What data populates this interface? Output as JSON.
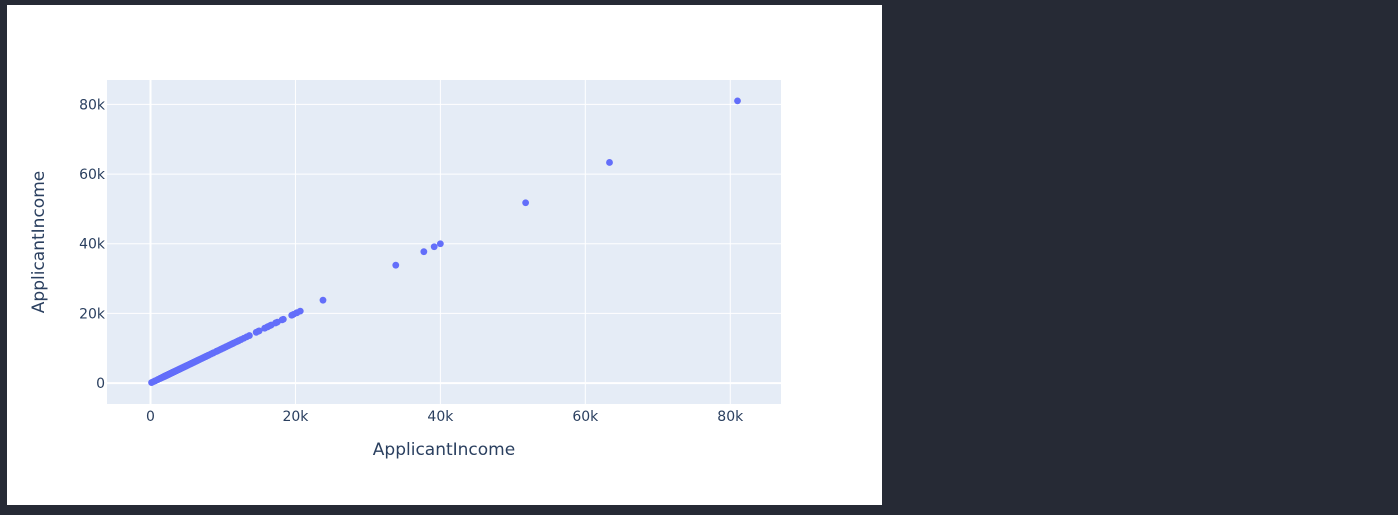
{
  "colors": {
    "page_background": "#262a35",
    "paper": "#ffffff",
    "plot_background": "#e5ecf6",
    "grid": "#ffffff",
    "marker": "#636efa",
    "text": "#2a3f5f"
  },
  "chart_data": {
    "type": "scatter",
    "title": "",
    "xlabel": "ApplicantIncome",
    "ylabel": "ApplicantIncome",
    "xlim": [
      -6000,
      87000
    ],
    "ylim": [
      -6000,
      87000
    ],
    "grid": true,
    "x_ticks": [
      0,
      20000,
      40000,
      60000,
      80000
    ],
    "x_tick_labels": [
      "0",
      "20k",
      "40k",
      "60k",
      "80k"
    ],
    "y_ticks": [
      0,
      20000,
      40000,
      60000,
      80000
    ],
    "y_tick_labels": [
      "0",
      "20k",
      "40k",
      "60k",
      "80k"
    ],
    "series": [
      {
        "marker_color": "#636efa",
        "x": [
          150,
          416,
          645,
          674,
          1000,
          1025,
          1299,
          1378,
          1500,
          1538,
          1600,
          1668,
          1750,
          1800,
          1820,
          1853,
          1875,
          1916,
          1926,
          1958,
          1977,
          2000,
          2014,
          2031,
          2045,
          2058,
          2083,
          2130,
          2149,
          2167,
          2178,
          2213,
          2237,
          2253,
          2275,
          2292,
          2309,
          2333,
          2366,
          2378,
          2400,
          2425,
          2435,
          2479,
          2500,
          2526,
          2583,
          2600,
          2625,
          2661,
          2708,
          2718,
          2750,
          2785,
          2833,
          2876,
          2917,
          2947,
          2983,
          3000,
          3033,
          3073,
          3086,
          3125,
          3167,
          3200,
          3250,
          3276,
          3333,
          3366,
          3400,
          3417,
          3459,
          3500,
          3539,
          3583,
          3600,
          3667,
          3717,
          3750,
          3800,
          3846,
          3900,
          3917,
          3993,
          4000,
          4050,
          4095,
          4166,
          4200,
          4283,
          4300,
          4333,
          4400,
          4416,
          4500,
          4583,
          4608,
          4666,
          4692,
          4750,
          4817,
          4887,
          4931,
          5000,
          5050,
          5124,
          5200,
          5250,
          5333,
          5417,
          5500,
          5568,
          5649,
          5703,
          5800,
          5821,
          5935,
          6000,
          6080,
          6133,
          6250,
          6325,
          6400,
          6500,
          6608,
          6700,
          6822,
          6950,
          7085,
          7200,
          7333,
          7451,
          7583,
          7660,
          7740,
          7901,
          8000,
          8072,
          8333,
          8566,
          8624,
          8750,
          9083,
          9166,
          9323,
          9504,
          9703,
          9833,
          10000,
          10047,
          10171,
          10408,
          10513,
          10750,
          10833,
          11000,
          11146,
          11250,
          11417,
          11500,
          11757,
          12000,
          12173,
          12500,
          12876,
          13262,
          13650,
          14583,
          14880,
          15000,
          15759,
          16120,
          16250,
          16525,
          16667,
          17263,
          17500,
          18165,
          18333,
          19484,
          19730,
          20166,
          20233,
          20667,
          23803,
          33846,
          37719,
          39147,
          39999,
          51763,
          63337,
          81000
        ],
        "y": [
          150,
          416,
          645,
          674,
          1000,
          1025,
          1299,
          1378,
          1500,
          1538,
          1600,
          1668,
          1750,
          1800,
          1820,
          1853,
          1875,
          1916,
          1926,
          1958,
          1977,
          2000,
          2014,
          2031,
          2045,
          2058,
          2083,
          2130,
          2149,
          2167,
          2178,
          2213,
          2237,
          2253,
          2275,
          2292,
          2309,
          2333,
          2366,
          2378,
          2400,
          2425,
          2435,
          2479,
          2500,
          2526,
          2583,
          2600,
          2625,
          2661,
          2708,
          2718,
          2750,
          2785,
          2833,
          2876,
          2917,
          2947,
          2983,
          3000,
          3033,
          3073,
          3086,
          3125,
          3167,
          3200,
          3250,
          3276,
          3333,
          3366,
          3400,
          3417,
          3459,
          3500,
          3539,
          3583,
          3600,
          3667,
          3717,
          3750,
          3800,
          3846,
          3900,
          3917,
          3993,
          4000,
          4050,
          4095,
          4166,
          4200,
          4283,
          4300,
          4333,
          4400,
          4416,
          4500,
          4583,
          4608,
          4666,
          4692,
          4750,
          4817,
          4887,
          4931,
          5000,
          5050,
          5124,
          5200,
          5250,
          5333,
          5417,
          5500,
          5568,
          5649,
          5703,
          5800,
          5821,
          5935,
          6000,
          6080,
          6133,
          6250,
          6325,
          6400,
          6500,
          6608,
          6700,
          6822,
          6950,
          7085,
          7200,
          7333,
          7451,
          7583,
          7660,
          7740,
          7901,
          8000,
          8072,
          8333,
          8566,
          8624,
          8750,
          9083,
          9166,
          9323,
          9504,
          9703,
          9833,
          10000,
          10047,
          10171,
          10408,
          10513,
          10750,
          10833,
          11000,
          11146,
          11250,
          11417,
          11500,
          11757,
          12000,
          12173,
          12500,
          12876,
          13262,
          13650,
          14583,
          14880,
          15000,
          15759,
          16120,
          16250,
          16525,
          16667,
          17263,
          17500,
          18165,
          18333,
          19484,
          19730,
          20166,
          20233,
          20667,
          23803,
          33846,
          37719,
          39147,
          39999,
          51763,
          63337,
          81000
        ]
      }
    ]
  }
}
